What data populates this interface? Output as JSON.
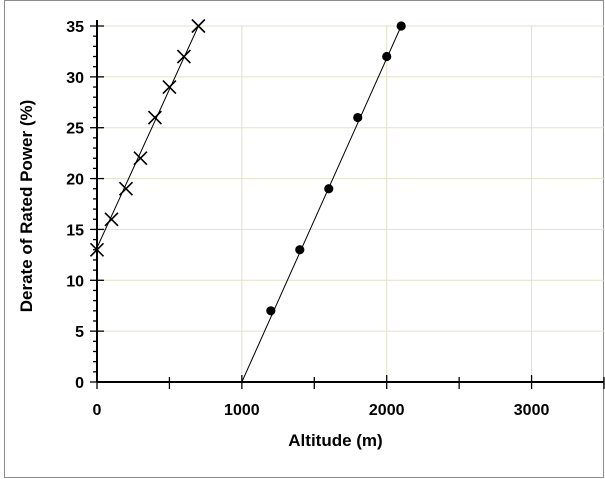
{
  "chart_data": {
    "type": "scatter",
    "xlabel": "Altitude (m)",
    "ylabel": "Derate of Rated Power (%)",
    "xlim": [
      0,
      3500
    ],
    "ylim": [
      0,
      35
    ],
    "xticks": [
      0,
      1000,
      2000,
      3000
    ],
    "yticks": [
      0,
      5,
      10,
      15,
      20,
      25,
      30,
      35
    ],
    "grid": true,
    "legend": "none",
    "colors": {
      "grid": "#e2e2c8",
      "marks": "#000000"
    },
    "series": [
      {
        "marker": "x",
        "points": [
          [
            0,
            13
          ],
          [
            100,
            16
          ],
          [
            200,
            19
          ],
          [
            300,
            22
          ],
          [
            400,
            26
          ],
          [
            500,
            29
          ],
          [
            600,
            32
          ],
          [
            700,
            35
          ]
        ],
        "fit_line": [
          [
            0,
            13.2
          ],
          [
            700,
            35
          ]
        ]
      },
      {
        "marker": "filled-circle",
        "points": [
          [
            1200,
            7
          ],
          [
            1400,
            13
          ],
          [
            1600,
            19
          ],
          [
            1800,
            26
          ],
          [
            2000,
            32
          ],
          [
            2100,
            35
          ]
        ],
        "fit_line": [
          [
            1000,
            0
          ],
          [
            2100,
            35
          ]
        ]
      }
    ]
  }
}
